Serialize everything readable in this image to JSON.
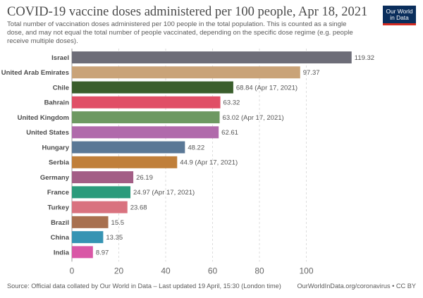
{
  "header": {
    "title": "COVID-19 vaccine doses administered per 100 people, Apr 18, 2021",
    "subtitle": "Total number of vaccination doses administered per 100 people in the total population. This is counted as a single dose, and may not equal the total number of people vaccinated, depending on the specific dose regime (e.g. people receive multiple doses).",
    "logo_line1": "Our World",
    "logo_line2": "in Data"
  },
  "footer": {
    "source": "Source: Official data collated by Our World in Data – Last updated 19 April, 15:30 (London time)",
    "link": "OurWorldInData.org/coronavirus",
    "license": " • CC BY"
  },
  "chart_data": {
    "type": "bar",
    "orientation": "horizontal",
    "title": "COVID-19 vaccine doses administered per 100 people, Apr 18, 2021",
    "xlabel": "",
    "ylabel": "",
    "xlim": [
      0,
      120
    ],
    "xticks": [
      0,
      20,
      40,
      60,
      80,
      100
    ],
    "grid": "vertical-dashed",
    "categories": [
      "Israel",
      "United Arab Emirates",
      "Chile",
      "Bahrain",
      "United Kingdom",
      "United States",
      "Hungary",
      "Serbia",
      "Germany",
      "France",
      "Turkey",
      "Brazil",
      "China",
      "India"
    ],
    "values": [
      119.32,
      97.37,
      68.84,
      63.32,
      63.02,
      62.61,
      48.22,
      44.9,
      26.19,
      24.97,
      23.68,
      15.5,
      13.35,
      8.97
    ],
    "value_labels": [
      "119.32",
      "97.37",
      "68.84 (Apr 17, 2021)",
      "63.32",
      "63.02 (Apr 17, 2021)",
      "62.61",
      "48.22",
      "44.9 (Apr 17, 2021)",
      "26.19",
      "24.97 (Apr 17, 2021)",
      "23.68",
      "15.5",
      "13.35",
      "8.97"
    ],
    "colors": [
      "#6d6d78",
      "#c9a378",
      "#3a5e2c",
      "#e04f66",
      "#6d9962",
      "#b06aab",
      "#5a7896",
      "#c07f3a",
      "#a35e86",
      "#2b9b7c",
      "#d9727f",
      "#a8704f",
      "#3694b3",
      "#d957a6"
    ]
  }
}
